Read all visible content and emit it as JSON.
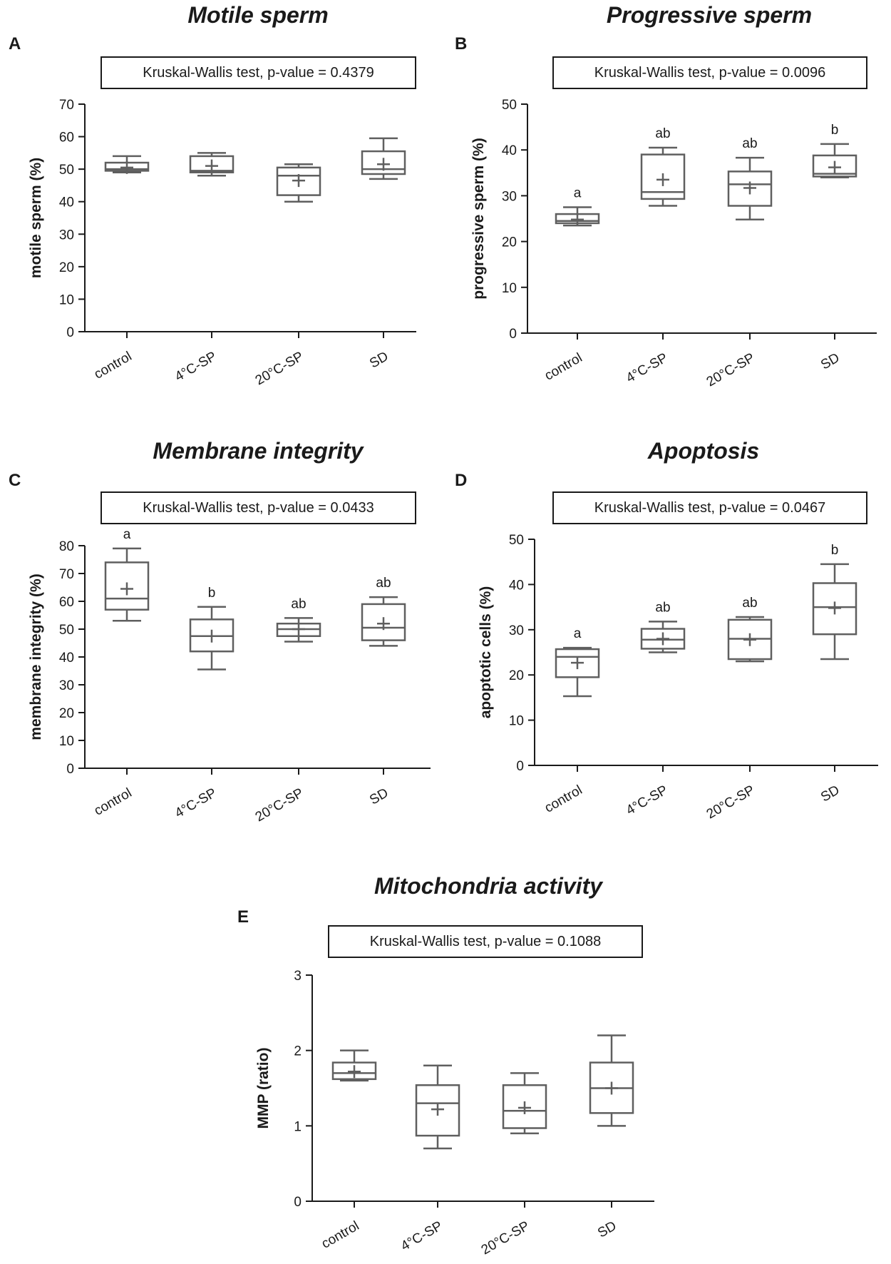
{
  "chart_data": [
    {
      "type": "box",
      "panel": "A",
      "title": "Motile sperm",
      "stat_test": "Kruskal-Wallis test, p-value = 0.4379",
      "ylabel": "motile sperm (%)",
      "ylim": [
        0,
        70
      ],
      "yticks": [
        0,
        10,
        20,
        30,
        40,
        50,
        60,
        70
      ],
      "categories": [
        "control",
        "4°C-SP",
        "20°C-SP",
        "SD"
      ],
      "boxes": [
        {
          "min": 49,
          "q1": 49.5,
          "median": 50,
          "q3": 52,
          "max": 54,
          "mean": 50.5,
          "letter": ""
        },
        {
          "min": 48,
          "q1": 49,
          "median": 49.5,
          "q3": 54,
          "max": 55,
          "mean": 51,
          "letter": ""
        },
        {
          "min": 40,
          "q1": 42,
          "median": 48,
          "q3": 50.5,
          "max": 51.5,
          "mean": 46.5,
          "letter": ""
        },
        {
          "min": 47,
          "q1": 48.5,
          "median": 50,
          "q3": 55.5,
          "max": 59.5,
          "mean": 51.5,
          "letter": ""
        }
      ]
    },
    {
      "type": "box",
      "panel": "B",
      "title": "Progressive sperm",
      "stat_test": "Kruskal-Wallis test, p-value = 0.0096",
      "ylabel": "progressive sperm (%)",
      "ylim": [
        0,
        50
      ],
      "yticks": [
        0,
        10,
        20,
        30,
        40,
        50
      ],
      "categories": [
        "control",
        "4°C-SP",
        "20°C-SP",
        "SD"
      ],
      "boxes": [
        {
          "min": 23.5,
          "q1": 24,
          "median": 24.5,
          "q3": 26,
          "max": 27.5,
          "mean": 24.8,
          "letter": "a"
        },
        {
          "min": 27.8,
          "q1": 29.3,
          "median": 30.8,
          "q3": 39,
          "max": 40.5,
          "mean": 33.5,
          "letter": "ab"
        },
        {
          "min": 24.8,
          "q1": 27.8,
          "median": 32.5,
          "q3": 35.3,
          "max": 38.3,
          "mean": 31.7,
          "letter": "ab"
        },
        {
          "min": 34,
          "q1": 34.2,
          "median": 34.8,
          "q3": 38.8,
          "max": 41.3,
          "mean": 36.2,
          "letter": "b"
        }
      ]
    },
    {
      "type": "box",
      "panel": "C",
      "title": "Membrane integrity",
      "stat_test": "Kruskal-Wallis test, p-value = 0.0433",
      "ylabel": "membrane integrity (%)",
      "ylim": [
        0,
        80
      ],
      "yticks": [
        0,
        10,
        20,
        30,
        40,
        50,
        60,
        70,
        80
      ],
      "categories": [
        "control",
        "4°C-SP",
        "20°C-SP",
        "SD"
      ],
      "boxes": [
        {
          "min": 53,
          "q1": 57,
          "median": 61,
          "q3": 74,
          "max": 79,
          "mean": 64.5,
          "letter": "a"
        },
        {
          "min": 35.5,
          "q1": 42,
          "median": 47.5,
          "q3": 53.5,
          "max": 58,
          "mean": 47.5,
          "letter": "b"
        },
        {
          "min": 45.5,
          "q1": 47.5,
          "median": 50,
          "q3": 52,
          "max": 54,
          "mean": 50,
          "letter": "ab"
        },
        {
          "min": 44,
          "q1": 46,
          "median": 50.5,
          "q3": 59,
          "max": 61.5,
          "mean": 52,
          "letter": "ab"
        }
      ]
    },
    {
      "type": "box",
      "panel": "D",
      "title": "Apoptosis",
      "stat_test": "Kruskal-Wallis test, p-value = 0.0467",
      "ylabel": "apoptotic cells (%)",
      "ylim": [
        0,
        50
      ],
      "yticks": [
        0,
        10,
        20,
        30,
        40,
        50
      ],
      "categories": [
        "control",
        "4°C-SP",
        "20°C-SP",
        "SD"
      ],
      "boxes": [
        {
          "min": 15.3,
          "q1": 19.5,
          "median": 24,
          "q3": 25.7,
          "max": 26,
          "mean": 22.7,
          "letter": "a"
        },
        {
          "min": 25,
          "q1": 25.8,
          "median": 27.8,
          "q3": 30.2,
          "max": 31.8,
          "mean": 28,
          "letter": "ab"
        },
        {
          "min": 23,
          "q1": 23.5,
          "median": 28,
          "q3": 32.2,
          "max": 32.8,
          "mean": 27.8,
          "letter": "ab"
        },
        {
          "min": 23.5,
          "q1": 29,
          "median": 35,
          "q3": 40.3,
          "max": 44.5,
          "mean": 34.8,
          "letter": "b"
        }
      ]
    },
    {
      "type": "box",
      "panel": "E",
      "title": "Mitochondria activity",
      "stat_test": "Kruskal-Wallis test, p-value = 0.1088",
      "ylabel": "MMP (ratio)",
      "ylim": [
        0,
        3
      ],
      "yticks": [
        0,
        1,
        2,
        3
      ],
      "categories": [
        "control",
        "4°C-SP",
        "20°C-SP",
        "SD"
      ],
      "boxes": [
        {
          "min": 1.6,
          "q1": 1.62,
          "median": 1.7,
          "q3": 1.84,
          "max": 2.0,
          "mean": 1.72,
          "letter": ""
        },
        {
          "min": 0.7,
          "q1": 0.87,
          "median": 1.3,
          "q3": 1.54,
          "max": 1.8,
          "mean": 1.22,
          "letter": ""
        },
        {
          "min": 0.9,
          "q1": 0.97,
          "median": 1.2,
          "q3": 1.54,
          "max": 1.7,
          "mean": 1.24,
          "letter": ""
        },
        {
          "min": 1.0,
          "q1": 1.17,
          "median": 1.5,
          "q3": 1.84,
          "max": 2.2,
          "mean": 1.5,
          "letter": ""
        }
      ]
    }
  ],
  "style": {
    "box_color": "#5f5f5f",
    "axis_color": "#1a1a1a"
  }
}
